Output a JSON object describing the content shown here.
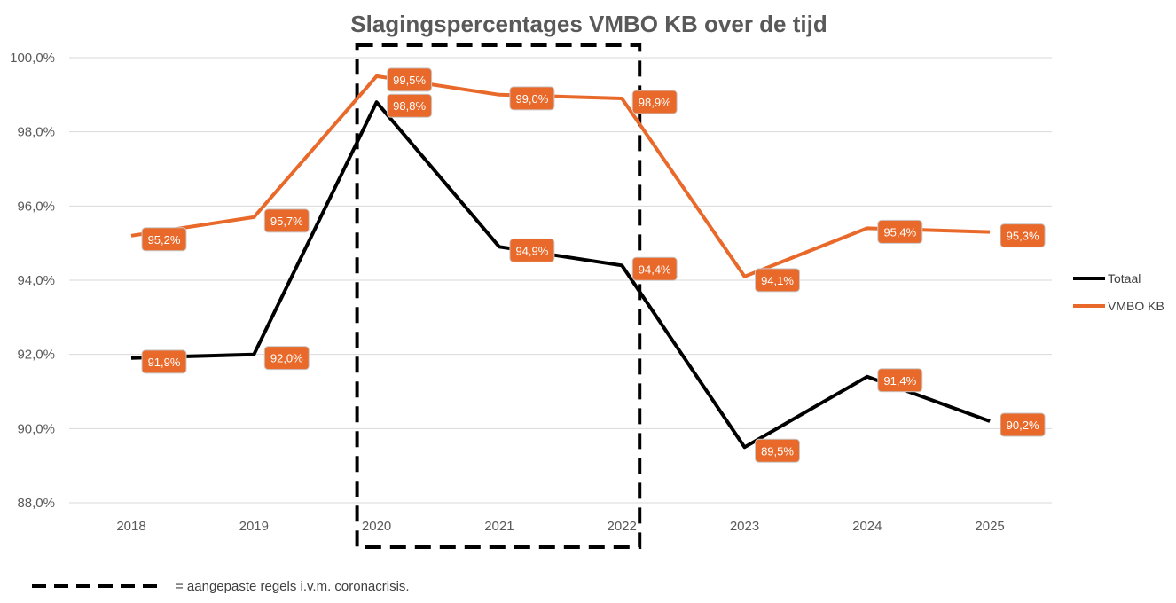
{
  "chart_data": {
    "type": "line",
    "title": "Slagingspercentages VMBO KB over de tijd",
    "xlabel": "",
    "ylabel": "",
    "categories": [
      "2018",
      "2019",
      "2020",
      "2021",
      "2022",
      "2023",
      "2024",
      "2025"
    ],
    "ylim": [
      88.0,
      100.0
    ],
    "yticks": [
      88.0,
      90.0,
      92.0,
      94.0,
      96.0,
      98.0,
      100.0
    ],
    "ytick_labels": [
      "88,0%",
      "90,0%",
      "92,0%",
      "94,0%",
      "96,0%",
      "98,0%",
      "100,0%"
    ],
    "grid": true,
    "legend_position": "right",
    "series": [
      {
        "name": "Totaal",
        "color": "#000000",
        "values": [
          91.9,
          92.0,
          98.8,
          94.9,
          94.4,
          89.5,
          91.4,
          90.2
        ],
        "labels": [
          "91,9%",
          "92,0%",
          "98,8%",
          "94,9%",
          "94,4%",
          "89,5%",
          "91,4%",
          "90,2%"
        ]
      },
      {
        "name": "VMBO KB",
        "color": "#E8692A",
        "values": [
          95.2,
          95.7,
          99.5,
          99.0,
          98.9,
          94.1,
          95.4,
          95.3
        ],
        "labels": [
          "95,2%",
          "95,7%",
          "99,5%",
          "99,0%",
          "98,9%",
          "94,1%",
          "95,4%",
          "95,3%"
        ]
      }
    ],
    "highlight": {
      "categories": [
        "2020",
        "2021",
        "2022"
      ],
      "style": "dashed-box",
      "note": "= aangepaste regels i.v.m. coronacrisis."
    },
    "label_color": "#E8692A",
    "grid_color": "#D9D9D9"
  }
}
